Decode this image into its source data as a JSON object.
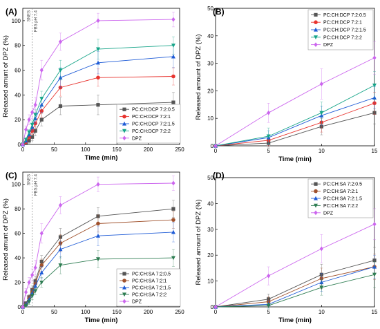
{
  "chart_data": [
    {
      "type": "line",
      "panel_label": "(A)",
      "xlabel": "Time (min)",
      "ylabel": "Released amunt of DPZ (%)",
      "xlim": [
        0,
        250
      ],
      "ylim": [
        0,
        110
      ],
      "xticks": [
        0,
        50,
        100,
        150,
        200,
        250
      ],
      "yticks": [
        0,
        20,
        40,
        60,
        80,
        100
      ],
      "annotations": [
        "SNES",
        "PBS pH 7.4"
      ],
      "legend_position": "bottom-right",
      "x": [
        0,
        5,
        10,
        15,
        20,
        30,
        60,
        120,
        240
      ],
      "series": [
        {
          "name": "PC:CH:DCP 7:2:0.5",
          "color": "#555555",
          "marker": "square",
          "values": [
            0,
            1,
            3,
            6,
            11,
            20,
            31,
            32,
            34
          ],
          "errors": [
            0,
            1,
            2,
            3,
            4,
            5,
            7,
            8,
            8
          ]
        },
        {
          "name": "PC:CH:DCP 7:2:1",
          "color": "#e8342f",
          "marker": "circle",
          "values": [
            0,
            2,
            6,
            11,
            17,
            27,
            46,
            54,
            55
          ],
          "errors": [
            0,
            1,
            2,
            3,
            4,
            5,
            7,
            7,
            7
          ]
        },
        {
          "name": "PC:CH:DCP 7:2:1.5",
          "color": "#1e5bd6",
          "marker": "triangle-up",
          "values": [
            0,
            3,
            8,
            14,
            21,
            32,
            54,
            66,
            71
          ],
          "errors": [
            0,
            1,
            2,
            3,
            4,
            6,
            8,
            9,
            9
          ]
        },
        {
          "name": "PC:CH:DCP 7:2:2",
          "color": "#17a589",
          "marker": "triangle-down",
          "values": [
            0,
            4,
            10,
            16,
            24,
            37,
            60,
            77,
            80
          ],
          "errors": [
            0,
            1,
            2,
            3,
            4,
            6,
            8,
            8,
            7
          ]
        },
        {
          "name": "DPZ",
          "color": "#cc66ee",
          "marker": "diamond",
          "values": [
            0,
            12,
            20,
            26,
            32,
            60,
            83,
            100,
            101
          ],
          "errors": [
            0,
            3,
            4,
            5,
            6,
            8,
            7,
            6,
            6
          ]
        }
      ]
    },
    {
      "type": "line",
      "panel_label": "(B)",
      "xlabel": "Time (min)",
      "ylabel": "Released amount of DPZ (%)",
      "xlim": [
        0,
        15
      ],
      "ylim": [
        0,
        50
      ],
      "xticks": [
        0,
        5,
        10,
        15
      ],
      "yticks": [
        0,
        10,
        20,
        30,
        40,
        50
      ],
      "legend_position": "top-right",
      "x": [
        0,
        5,
        10,
        15
      ],
      "series": [
        {
          "name": "PC:CH:DCP 7:2:0.5",
          "color": "#555555",
          "marker": "square",
          "values": [
            0,
            1.0,
            7.0,
            12.0
          ],
          "errors": [
            0,
            1.5,
            3,
            4
          ]
        },
        {
          "name": "PC:CH:DCP 7:2:1",
          "color": "#e8342f",
          "marker": "circle",
          "values": [
            0,
            2.0,
            8.5,
            15.5
          ],
          "errors": [
            0,
            2,
            3.5,
            4
          ]
        },
        {
          "name": "PC:CH:DCP 7:2:1.5",
          "color": "#1e5bd6",
          "marker": "triangle-up",
          "values": [
            0,
            3.0,
            11.0,
            17.5
          ],
          "errors": [
            0,
            2.5,
            3.5,
            4
          ]
        },
        {
          "name": "PC:CH:DCP 7:2:2",
          "color": "#17a589",
          "marker": "triangle-down",
          "values": [
            0,
            3.5,
            12.0,
            22.0
          ],
          "errors": [
            0,
            3,
            4,
            5
          ]
        },
        {
          "name": "DPZ",
          "color": "#cc66ee",
          "marker": "diamond",
          "values": [
            0,
            12.0,
            22.5,
            32.0
          ],
          "errors": [
            0,
            3.5,
            5.5,
            6
          ]
        }
      ]
    },
    {
      "type": "line",
      "panel_label": "(C)",
      "xlabel": "Time (min)",
      "ylabel": "Released amunt of DPZ (%)",
      "xlim": [
        0,
        250
      ],
      "ylim": [
        0,
        110
      ],
      "xticks": [
        0,
        50,
        100,
        150,
        200,
        250
      ],
      "yticks": [
        0,
        20,
        40,
        60,
        80,
        100
      ],
      "annotations": [
        "SNES",
        "PBS pH 7.4"
      ],
      "legend_position": "bottom-right",
      "x": [
        0,
        5,
        10,
        15,
        20,
        30,
        60,
        120,
        240
      ],
      "series": [
        {
          "name": "PC:CH:SA 7:2:0.5",
          "color": "#555555",
          "marker": "square",
          "values": [
            0,
            3,
            8,
            14,
            21,
            37,
            57,
            74,
            80
          ],
          "errors": [
            0,
            1,
            2,
            3,
            4,
            5,
            7,
            7,
            7
          ]
        },
        {
          "name": "PC:CH:SA 7:2:1",
          "color": "#a0522d",
          "marker": "circle",
          "values": [
            0,
            2,
            7,
            12,
            19,
            34,
            52,
            68,
            71
          ],
          "errors": [
            0,
            1,
            2,
            3,
            4,
            5,
            7,
            7,
            7
          ]
        },
        {
          "name": "PC:CH:SA 7:2:1.5",
          "color": "#1e5bd6",
          "marker": "triangle-up",
          "values": [
            0,
            2,
            6,
            11,
            17,
            28,
            47,
            58,
            61
          ],
          "errors": [
            0,
            1,
            2,
            3,
            4,
            5,
            7,
            8,
            8
          ]
        },
        {
          "name": "PC:CH:SA 7:2:2",
          "color": "#2e7d52",
          "marker": "triangle-down",
          "values": [
            0,
            1,
            4,
            9,
            13,
            20,
            34,
            39,
            40
          ],
          "errors": [
            0,
            1,
            2,
            3,
            3,
            4,
            7,
            7,
            7
          ]
        },
        {
          "name": "DPZ",
          "color": "#cc66ee",
          "marker": "diamond",
          "values": [
            0,
            12,
            20,
            26,
            32,
            60,
            83,
            100,
            101
          ],
          "errors": [
            0,
            3,
            4,
            5,
            6,
            8,
            7,
            6,
            6
          ]
        }
      ]
    },
    {
      "type": "line",
      "panel_label": "(D)",
      "xlabel": "Time (min)",
      "ylabel": "Released amount of DPZ (%)",
      "xlim": [
        0,
        15
      ],
      "ylim": [
        0,
        50
      ],
      "xticks": [
        0,
        5,
        10,
        15
      ],
      "yticks": [
        0,
        10,
        20,
        30,
        40,
        50
      ],
      "legend_position": "top-right",
      "x": [
        0,
        5,
        10,
        15
      ],
      "series": [
        {
          "name": "PC:CH:SA 7:2:0.5",
          "color": "#555555",
          "marker": "square",
          "values": [
            0,
            3.0,
            12.5,
            18.0
          ],
          "errors": [
            0,
            2,
            4,
            5
          ]
        },
        {
          "name": "PC:CH:SA 7:2:1",
          "color": "#a0522d",
          "marker": "circle",
          "values": [
            0,
            2.0,
            11.0,
            15.5
          ],
          "errors": [
            0,
            2,
            4,
            5
          ]
        },
        {
          "name": "PC:CH:SA 7:2:1.5",
          "color": "#1e5bd6",
          "marker": "triangle-up",
          "values": [
            0,
            1.0,
            9.5,
            15.5
          ],
          "errors": [
            0,
            1.5,
            3.5,
            4.5
          ]
        },
        {
          "name": "PC:CH:SA 7:2:2",
          "color": "#2e7d52",
          "marker": "triangle-down",
          "values": [
            0,
            0.5,
            7.5,
            12.5
          ],
          "errors": [
            0,
            1,
            3,
            5
          ]
        },
        {
          "name": "DPZ",
          "color": "#cc66ee",
          "marker": "diamond",
          "values": [
            0,
            12.0,
            22.5,
            32.0
          ],
          "errors": [
            0,
            3.5,
            5.5,
            6
          ]
        }
      ]
    }
  ]
}
